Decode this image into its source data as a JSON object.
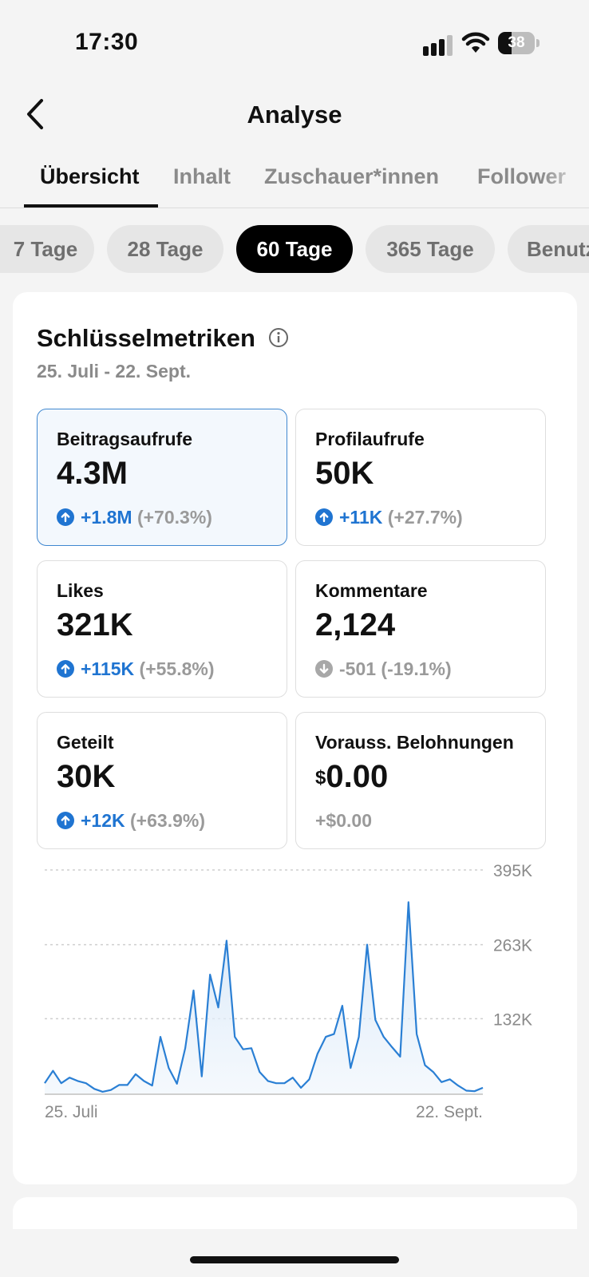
{
  "status": {
    "time": "17:30",
    "battery": "38",
    "battery_level": 0.38
  },
  "header": {
    "title": "Analyse",
    "back_icon": "chevron-left-icon"
  },
  "tabs": [
    {
      "label": "Übersicht",
      "active": true
    },
    {
      "label": "Inhalt",
      "active": false
    },
    {
      "label": "Zuschauer*innen",
      "active": false
    },
    {
      "label": "Follower",
      "active": false
    }
  ],
  "range_chips": [
    {
      "label": "7 Tage",
      "active": false
    },
    {
      "label": "28 Tage",
      "active": false
    },
    {
      "label": "60 Tage",
      "active": true
    },
    {
      "label": "365 Tage",
      "active": false
    },
    {
      "label": "Benutzerdefiniert",
      "active": false
    }
  ],
  "key_metrics": {
    "title": "Schlüsselmetriken",
    "date_range": "25. Juli - 22. Sept.",
    "info_icon": "info-icon",
    "items": [
      {
        "label": "Beitragsaufrufe",
        "value": "4.3M",
        "delta": "+1.8M",
        "pct": "(+70.3%)",
        "trend": "up",
        "selected": true
      },
      {
        "label": "Profilaufrufe",
        "value": "50K",
        "delta": "+11K",
        "pct": "(+27.7%)",
        "trend": "up",
        "selected": false
      },
      {
        "label": "Likes",
        "value": "321K",
        "delta": "+115K",
        "pct": "(+55.8%)",
        "trend": "up",
        "selected": false
      },
      {
        "label": "Kommentare",
        "value": "2,124",
        "delta": "-501 (-19.1%)",
        "pct": "",
        "trend": "down",
        "selected": false
      },
      {
        "label": "Geteilt",
        "value": "30K",
        "delta": "+12K",
        "pct": "(+63.9%)",
        "trend": "up",
        "selected": false
      },
      {
        "label": "Vorauss. Belohnungen",
        "currency": "$",
        "value": "0.00",
        "delta": "+$0.00",
        "pct": "",
        "trend": "none",
        "selected": false
      }
    ]
  },
  "colors": {
    "accent": "#1f74d1",
    "line": "#2a7fd4",
    "muted": "#9a9a9a"
  },
  "chart_data": {
    "type": "area",
    "x_tick_labels": [
      "25. Juli",
      "22. Sept."
    ],
    "y_tick_labels": [
      "132K",
      "263K",
      "395K"
    ],
    "y_ticks": [
      132,
      263,
      395
    ],
    "ylim": [
      0,
      395
    ],
    "grid": true,
    "series": [
      {
        "values": [
          18,
          40,
          18,
          28,
          22,
          18,
          8,
          3,
          6,
          15,
          15,
          34,
          22,
          14,
          100,
          45,
          17,
          80,
          182,
          30,
          210,
          152,
          270,
          100,
          78,
          80,
          38,
          22,
          18,
          18,
          28,
          10,
          25,
          70,
          100,
          105,
          155,
          45,
          100,
          263,
          130,
          100,
          82,
          65,
          338,
          105,
          50,
          38,
          20,
          25,
          14,
          5,
          4,
          10
        ]
      }
    ]
  },
  "nav": {
    "home_indicator": "home-indicator"
  }
}
